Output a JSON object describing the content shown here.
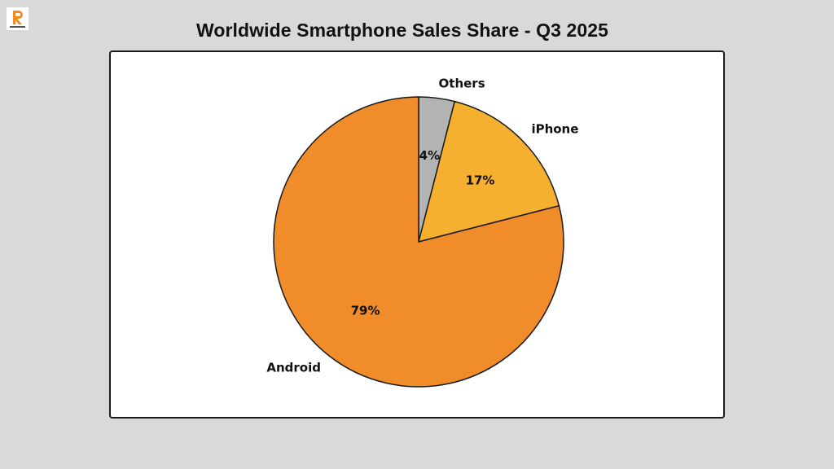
{
  "logo": {
    "name": "raas cloud",
    "icon": "raas-cloud-logo-icon"
  },
  "title": "Worldwide Smartphone Sales Share - Q3 2025",
  "chart_data": {
    "type": "pie",
    "title": "Worldwide Smartphone Sales Share - Q3 2025",
    "categories": [
      "Others",
      "iPhone",
      "Android"
    ],
    "values": [
      4,
      17,
      79
    ],
    "labels": [
      "4%",
      "17%",
      "79%"
    ],
    "colors": [
      "#b3b3b3",
      "#f5b030",
      "#f08c2a"
    ],
    "start_angle": 90,
    "direction": "clockwise",
    "legend": "none"
  }
}
